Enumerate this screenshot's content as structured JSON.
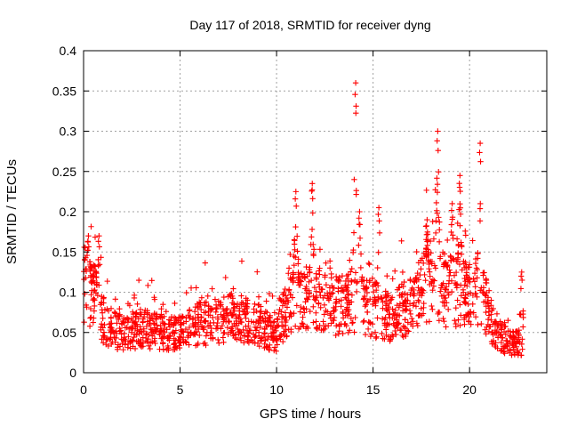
{
  "chart_data": {
    "type": "scatter",
    "title": "Day 117 of 2018, SRMTID for receiver dyng",
    "xlabel": "GPS time / hours",
    "ylabel": "SRMTID / TECUs",
    "xlim": [
      0,
      24
    ],
    "ylim": [
      0,
      0.4
    ],
    "xticks": [
      0,
      5,
      10,
      15,
      20
    ],
    "xtick_labels": [
      "0",
      "5",
      "10",
      "15",
      "20"
    ],
    "yticks": [
      0,
      0.05,
      0.1,
      0.15,
      0.2,
      0.25,
      0.3,
      0.35,
      0.4
    ],
    "ytick_labels": [
      "0",
      "0.05",
      "0.1",
      "0.15",
      "0.2",
      "0.25",
      "0.3",
      "0.35",
      "0.4"
    ],
    "grid": true,
    "marker": "+",
    "color": "#ff0000",
    "series": [
      {
        "name": "SRMTID",
        "x_range": [
          0,
          22.8
        ],
        "baseline": [
          [
            0.0,
            0.11
          ],
          [
            0.5,
            0.1
          ],
          [
            1.0,
            0.06
          ],
          [
            2.0,
            0.05
          ],
          [
            3.0,
            0.055
          ],
          [
            4.0,
            0.05
          ],
          [
            5.0,
            0.05
          ],
          [
            6.0,
            0.06
          ],
          [
            7.0,
            0.065
          ],
          [
            8.0,
            0.07
          ],
          [
            9.0,
            0.06
          ],
          [
            10.0,
            0.045
          ],
          [
            10.5,
            0.08
          ],
          [
            11.0,
            0.1
          ],
          [
            12.0,
            0.09
          ],
          [
            13.0,
            0.08
          ],
          [
            14.0,
            0.09
          ],
          [
            15.0,
            0.08
          ],
          [
            16.0,
            0.065
          ],
          [
            17.0,
            0.09
          ],
          [
            18.0,
            0.11
          ],
          [
            19.0,
            0.09
          ],
          [
            20.0,
            0.1
          ],
          [
            20.5,
            0.11
          ],
          [
            21.0,
            0.07
          ],
          [
            21.5,
            0.05
          ],
          [
            22.0,
            0.04
          ],
          [
            22.8,
            0.035
          ]
        ],
        "peaks": [
          {
            "x": 0.25,
            "y": 0.17
          },
          {
            "x": 0.8,
            "y": 0.17
          },
          {
            "x": 11.0,
            "y": 0.225
          },
          {
            "x": 11.85,
            "y": 0.235
          },
          {
            "x": 14.1,
            "y": 0.36
          },
          {
            "x": 14.3,
            "y": 0.2
          },
          {
            "x": 15.3,
            "y": 0.205
          },
          {
            "x": 17.8,
            "y": 0.19
          },
          {
            "x": 18.35,
            "y": 0.3
          },
          {
            "x": 19.1,
            "y": 0.21
          },
          {
            "x": 19.5,
            "y": 0.245
          },
          {
            "x": 20.55,
            "y": 0.285
          },
          {
            "x": 22.7,
            "y": 0.125
          }
        ]
      }
    ]
  }
}
